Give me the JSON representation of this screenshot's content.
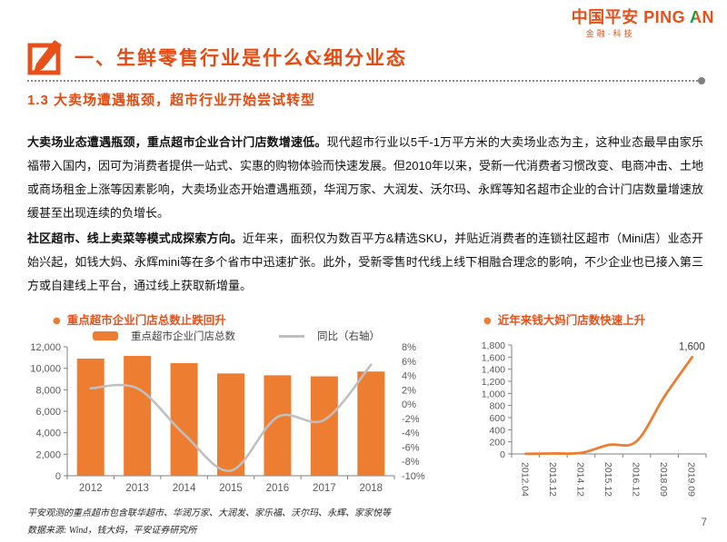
{
  "ui": {
    "bullet": "●"
  },
  "colors": {
    "brand_orange": "#E8501A",
    "heading_orange": "#E8490F",
    "chart_orange": "#ED7D31",
    "line_gray": "#BFBFBF",
    "brand_green": "#00A33E"
  },
  "logo": {
    "cn": "中国平安",
    "en_ping": "PING",
    "en_a": "A",
    "en_n": "N",
    "tagline": "金融·科技"
  },
  "header": {
    "section_title": "一、生鲜零售行业是什么&细分业态",
    "subtitle": "1.3 大卖场遭遇瓶颈，超市行业开始尝试转型"
  },
  "paragraphs": [
    {
      "lead": "大卖场业态遭遇瓶颈，重点超市企业合计门店数增速低。",
      "body": "现代超市行业以5千-1万平方米的大卖场业态为主，这种业态最早由家乐福带入国内，因可为消费者提供一站式、实惠的购物体验而快速发展。但2010年以来，受新一代消费者习惯改变、电商冲击、土地或商场租金上涨等因素影响，大卖场业态开始遭遇瓶颈，华润万家、大润发、沃尔玛、永辉等知名超市企业的合计门店数量增速放缓甚至出现连续的负增长。"
    },
    {
      "lead": "社区超市、线上卖菜等模式成探索方向。",
      "body": "近年来，面积仅为数百平方&精选SKU，并贴近消费者的连锁社区超市（Mini店）业态开始兴起，如钱大妈、永辉mini等在多个省市中迅速扩张。此外，受新零售时代线上线下相融合理念的影响，不少企业也已接入第三方或自建线上平台，通过线上获取新增量。"
    }
  ],
  "chart_data": [
    {
      "type": "bar+line",
      "title": "重点超市企业门店总数止跌回升",
      "categories": [
        "2012",
        "2013",
        "2014",
        "2015",
        "2016",
        "2017",
        "2018"
      ],
      "series": [
        {
          "name": "重点超市企业门店总数",
          "type": "bar",
          "axis": "left",
          "values": [
            10900,
            11150,
            10480,
            9520,
            9350,
            9250,
            9700
          ],
          "color": "#ED7D31"
        },
        {
          "name": "同比（右轴）",
          "type": "line",
          "axis": "right",
          "values": [
            2.2,
            2.2,
            -4.2,
            -9.3,
            -1.8,
            -2.2,
            5.5
          ],
          "color": "#BFBFBF"
        }
      ],
      "left_axis": {
        "min": 0,
        "max": 12000,
        "step": 2000
      },
      "right_axis": {
        "min": -10,
        "max": 8,
        "step": 2,
        "suffix": "%"
      },
      "legend_position": "top",
      "grid": false
    },
    {
      "type": "line",
      "title": "近年来钱大妈门店数快速上升",
      "categories": [
        "2012.04",
        "2013.12",
        "2014.12",
        "2015.12",
        "2016.12",
        "2018.09",
        "2019.09"
      ],
      "series": [
        {
          "name": "钱大妈门店数",
          "values": [
            2,
            8,
            18,
            150,
            210,
            950,
            1600
          ],
          "color": "#ED7D31"
        }
      ],
      "y_axis": {
        "min": 0,
        "max": 1800,
        "step": 200
      },
      "end_label": "1,600",
      "grid": false
    }
  ],
  "footnotes": {
    "note": "平安观测的重点超市包含联华超市、华润万家、大润发、家乐福、沃尔玛、永辉、家家悦等",
    "source": "数据来源: Wind，钱大妈，平安证券研究所"
  },
  "page_number": "7"
}
